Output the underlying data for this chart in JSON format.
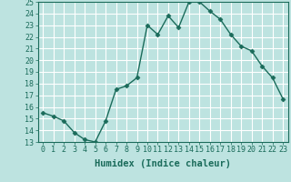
{
  "xlabel": "Humidex (Indice chaleur)",
  "x_values": [
    0,
    1,
    2,
    3,
    4,
    5,
    6,
    7,
    8,
    9,
    10,
    11,
    12,
    13,
    14,
    15,
    16,
    17,
    18,
    19,
    20,
    21,
    22,
    23
  ],
  "y_values": [
    15.5,
    15.2,
    14.8,
    13.8,
    13.2,
    13.0,
    14.8,
    17.5,
    17.8,
    18.5,
    23.0,
    22.2,
    23.8,
    22.8,
    25.0,
    25.0,
    24.2,
    23.5,
    22.2,
    21.2,
    20.8,
    19.5,
    18.5,
    16.7
  ],
  "line_color": "#1a6b5a",
  "marker": "D",
  "marker_size": 2.5,
  "bg_color": "#bde3e0",
  "grid_color": "#ffffff",
  "ylim": [
    13,
    25
  ],
  "yticks": [
    13,
    14,
    15,
    16,
    17,
    18,
    19,
    20,
    21,
    22,
    23,
    24,
    25
  ],
  "xticks": [
    0,
    1,
    2,
    3,
    4,
    5,
    6,
    7,
    8,
    9,
    10,
    11,
    12,
    13,
    14,
    15,
    16,
    17,
    18,
    19,
    20,
    21,
    22,
    23
  ],
  "tick_color": "#1a6b5a",
  "label_fontsize": 7.5,
  "tick_fontsize": 6.0,
  "line_width": 1.0
}
